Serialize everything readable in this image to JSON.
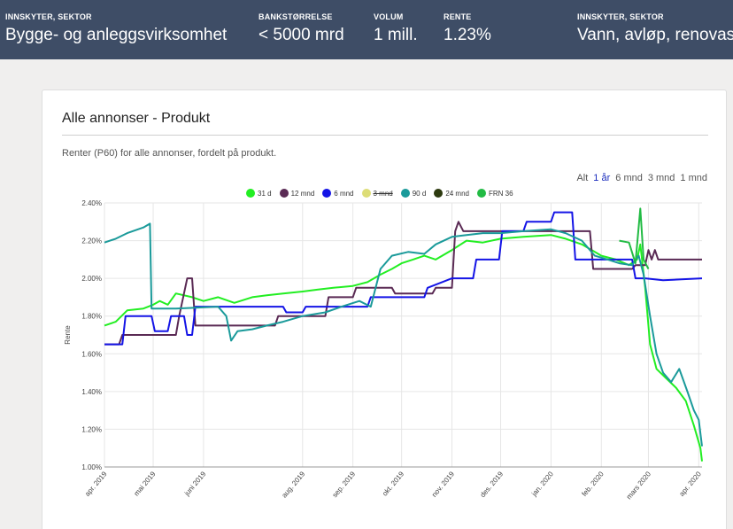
{
  "topbar": {
    "stats": [
      {
        "label": "INNSKYTER, SEKTOR",
        "value": "Bygge- og anleggsvirksomhet"
      },
      {
        "label": "BANKSTØRRELSE",
        "value": "< 5000 mrd"
      },
      {
        "label": "VOLUM",
        "value": "1 mill."
      },
      {
        "label": "RENTE",
        "value": "1.23%"
      },
      {
        "label": "INNSKYTER, SEKTOR",
        "value": "Vann, avløp, renovasjon"
      }
    ]
  },
  "card": {
    "title": "Alle annonser - Produkt",
    "subtitle": "Renter (P60) for alle annonser, fordelt på produkt."
  },
  "range_buttons": [
    "Alt",
    "1 år",
    "6 mnd",
    "3 mnd",
    "1 mnd"
  ],
  "range_active": "1 år",
  "chart_data": {
    "type": "line",
    "ylabel": "Rente",
    "xlabel": "",
    "ylim": [
      1.0,
      2.4
    ],
    "yticks": [
      "1.00%",
      "1.20%",
      "1.40%",
      "1.60%",
      "1.80%",
      "2.00%",
      "2.20%",
      "2.40%"
    ],
    "xticks": [
      "apr. 2019",
      "mai 2019",
      "juni 2019",
      "aug. 2019",
      "sep. 2019",
      "okt. 2019",
      "nov. 2019",
      "des. 2019",
      "jan. 2020",
      "feb. 2020",
      "mars 2020",
      "apr. 2020"
    ],
    "xtick_dates": [
      "2019-04-01",
      "2019-05-01",
      "2019-06-01",
      "2019-08-01",
      "2019-09-01",
      "2019-10-01",
      "2019-11-01",
      "2019-12-01",
      "2020-01-01",
      "2020-02-01",
      "2020-03-01",
      "2020-04-01"
    ],
    "legend_position": "top-center",
    "series": [
      {
        "name": "31 d",
        "color": "#22ee22",
        "hidden": false,
        "points": [
          [
            "2019-04-01",
            1.75
          ],
          [
            "2019-04-08",
            1.77
          ],
          [
            "2019-04-15",
            1.83
          ],
          [
            "2019-04-25",
            1.84
          ],
          [
            "2019-05-01",
            1.86
          ],
          [
            "2019-05-05",
            1.88
          ],
          [
            "2019-05-10",
            1.86
          ],
          [
            "2019-05-15",
            1.92
          ],
          [
            "2019-05-25",
            1.9
          ],
          [
            "2019-06-01",
            1.88
          ],
          [
            "2019-06-10",
            1.9
          ],
          [
            "2019-06-20",
            1.87
          ],
          [
            "2019-07-01",
            1.9
          ],
          [
            "2019-07-10",
            1.91
          ],
          [
            "2019-07-20",
            1.92
          ],
          [
            "2019-08-01",
            1.93
          ],
          [
            "2019-08-10",
            1.94
          ],
          [
            "2019-08-20",
            1.95
          ],
          [
            "2019-09-01",
            1.96
          ],
          [
            "2019-09-10",
            1.98
          ],
          [
            "2019-09-18",
            2.02
          ],
          [
            "2019-09-25",
            2.05
          ],
          [
            "2019-10-01",
            2.08
          ],
          [
            "2019-10-08",
            2.1
          ],
          [
            "2019-10-15",
            2.12
          ],
          [
            "2019-10-22",
            2.1
          ],
          [
            "2019-11-01",
            2.15
          ],
          [
            "2019-11-10",
            2.2
          ],
          [
            "2019-11-20",
            2.19
          ],
          [
            "2019-12-01",
            2.21
          ],
          [
            "2019-12-15",
            2.22
          ],
          [
            "2020-01-01",
            2.23
          ],
          [
            "2020-01-10",
            2.21
          ],
          [
            "2020-01-20",
            2.18
          ],
          [
            "2020-01-28",
            2.14
          ],
          [
            "2020-02-01",
            2.12
          ],
          [
            "2020-02-10",
            2.1
          ],
          [
            "2020-02-18",
            2.07
          ],
          [
            "2020-02-23",
            2.1
          ],
          [
            "2020-02-25",
            2.18
          ],
          [
            "2020-02-28",
            1.95
          ],
          [
            "2020-03-02",
            1.65
          ],
          [
            "2020-03-06",
            1.52
          ],
          [
            "2020-03-12",
            1.47
          ],
          [
            "2020-03-18",
            1.42
          ],
          [
            "2020-03-24",
            1.35
          ],
          [
            "2020-03-29",
            1.22
          ],
          [
            "2020-04-02",
            1.1
          ],
          [
            "2020-04-03",
            1.03
          ]
        ]
      },
      {
        "name": "12 mnd",
        "color": "#5a2a54",
        "hidden": false,
        "points": [
          [
            "2019-04-01",
            1.65
          ],
          [
            "2019-04-10",
            1.65
          ],
          [
            "2019-04-12",
            1.7
          ],
          [
            "2019-05-15",
            1.7
          ],
          [
            "2019-05-17",
            1.8
          ],
          [
            "2019-05-22",
            2.0
          ],
          [
            "2019-05-25",
            2.0
          ],
          [
            "2019-05-27",
            1.75
          ],
          [
            "2019-07-15",
            1.75
          ],
          [
            "2019-07-17",
            1.8
          ],
          [
            "2019-08-15",
            1.8
          ],
          [
            "2019-08-17",
            1.9
          ],
          [
            "2019-09-01",
            1.9
          ],
          [
            "2019-09-03",
            1.95
          ],
          [
            "2019-09-25",
            1.95
          ],
          [
            "2019-09-27",
            1.92
          ],
          [
            "2019-10-20",
            1.92
          ],
          [
            "2019-10-22",
            1.95
          ],
          [
            "2019-11-01",
            1.95
          ],
          [
            "2019-11-03",
            2.25
          ],
          [
            "2019-11-05",
            2.3
          ],
          [
            "2019-11-08",
            2.25
          ],
          [
            "2020-01-25",
            2.25
          ],
          [
            "2020-01-27",
            2.05
          ],
          [
            "2020-02-20",
            2.05
          ],
          [
            "2020-02-22",
            2.07
          ],
          [
            "2020-02-28",
            2.07
          ],
          [
            "2020-03-01",
            2.15
          ],
          [
            "2020-03-03",
            2.1
          ],
          [
            "2020-03-05",
            2.15
          ],
          [
            "2020-03-07",
            2.1
          ],
          [
            "2020-04-03",
            2.1
          ]
        ]
      },
      {
        "name": "6 mnd",
        "color": "#1414e6",
        "hidden": false,
        "points": [
          [
            "2019-04-01",
            1.65
          ],
          [
            "2019-04-12",
            1.65
          ],
          [
            "2019-04-14",
            1.8
          ],
          [
            "2019-04-30",
            1.8
          ],
          [
            "2019-05-02",
            1.72
          ],
          [
            "2019-05-10",
            1.72
          ],
          [
            "2019-05-12",
            1.8
          ],
          [
            "2019-05-20",
            1.8
          ],
          [
            "2019-05-22",
            1.7
          ],
          [
            "2019-05-25",
            1.7
          ],
          [
            "2019-05-27",
            1.85
          ],
          [
            "2019-07-20",
            1.85
          ],
          [
            "2019-07-22",
            1.82
          ],
          [
            "2019-08-01",
            1.82
          ],
          [
            "2019-08-03",
            1.85
          ],
          [
            "2019-09-10",
            1.85
          ],
          [
            "2019-09-12",
            1.9
          ],
          [
            "2019-10-15",
            1.9
          ],
          [
            "2019-10-17",
            1.95
          ],
          [
            "2019-11-01",
            2.0
          ],
          [
            "2019-11-14",
            2.0
          ],
          [
            "2019-11-16",
            2.1
          ],
          [
            "2019-11-30",
            2.1
          ],
          [
            "2019-12-02",
            2.25
          ],
          [
            "2019-12-15",
            2.25
          ],
          [
            "2019-12-17",
            2.3
          ],
          [
            "2020-01-01",
            2.3
          ],
          [
            "2020-01-03",
            2.35
          ],
          [
            "2020-01-14",
            2.35
          ],
          [
            "2020-01-16",
            2.1
          ],
          [
            "2020-02-20",
            2.1
          ],
          [
            "2020-02-22",
            2.0
          ],
          [
            "2020-02-28",
            2.0
          ],
          [
            "2020-03-10",
            1.99
          ],
          [
            "2020-04-03",
            2.0
          ]
        ]
      },
      {
        "name": "3 mnd",
        "color": "#dddd77",
        "hidden": true,
        "points": []
      },
      {
        "name": "90 d",
        "color": "#1a9a9a",
        "hidden": false,
        "points": [
          [
            "2019-04-01",
            2.19
          ],
          [
            "2019-04-08",
            2.21
          ],
          [
            "2019-04-15",
            2.24
          ],
          [
            "2019-04-25",
            2.27
          ],
          [
            "2019-04-29",
            2.29
          ],
          [
            "2019-04-30",
            1.84
          ],
          [
            "2019-05-15",
            1.84
          ],
          [
            "2019-06-10",
            1.85
          ],
          [
            "2019-06-15",
            1.8
          ],
          [
            "2019-06-18",
            1.67
          ],
          [
            "2019-06-22",
            1.72
          ],
          [
            "2019-07-01",
            1.73
          ],
          [
            "2019-07-10",
            1.75
          ],
          [
            "2019-07-20",
            1.77
          ],
          [
            "2019-08-01",
            1.8
          ],
          [
            "2019-08-15",
            1.82
          ],
          [
            "2019-08-25",
            1.85
          ],
          [
            "2019-09-05",
            1.88
          ],
          [
            "2019-09-12",
            1.85
          ],
          [
            "2019-09-18",
            2.05
          ],
          [
            "2019-09-25",
            2.12
          ],
          [
            "2019-10-05",
            2.14
          ],
          [
            "2019-10-15",
            2.13
          ],
          [
            "2019-10-22",
            2.18
          ],
          [
            "2019-11-01",
            2.22
          ],
          [
            "2019-11-10",
            2.23
          ],
          [
            "2019-11-20",
            2.24
          ],
          [
            "2019-12-01",
            2.24
          ],
          [
            "2019-12-15",
            2.25
          ],
          [
            "2020-01-01",
            2.26
          ],
          [
            "2020-01-10",
            2.24
          ],
          [
            "2020-01-20",
            2.2
          ],
          [
            "2020-01-28",
            2.12
          ],
          [
            "2020-02-05",
            2.1
          ],
          [
            "2020-02-12",
            2.08
          ],
          [
            "2020-02-20",
            2.07
          ],
          [
            "2020-02-24",
            2.12
          ],
          [
            "2020-02-27",
            2.02
          ],
          [
            "2020-03-02",
            1.8
          ],
          [
            "2020-03-06",
            1.6
          ],
          [
            "2020-03-10",
            1.5
          ],
          [
            "2020-03-15",
            1.45
          ],
          [
            "2020-03-20",
            1.52
          ],
          [
            "2020-03-25",
            1.4
          ],
          [
            "2020-03-29",
            1.3
          ],
          [
            "2020-04-01",
            1.25
          ],
          [
            "2020-04-03",
            1.11
          ]
        ]
      },
      {
        "name": "24 mnd",
        "color": "#2d3a0f",
        "hidden": false,
        "points": []
      },
      {
        "name": "FRN 36",
        "color": "#22bb44",
        "hidden": false,
        "points": [
          [
            "2020-02-12",
            2.2
          ],
          [
            "2020-02-18",
            2.19
          ],
          [
            "2020-02-22",
            2.08
          ],
          [
            "2020-02-25",
            2.37
          ],
          [
            "2020-02-27",
            2.1
          ],
          [
            "2020-03-01",
            2.05
          ]
        ]
      }
    ]
  }
}
